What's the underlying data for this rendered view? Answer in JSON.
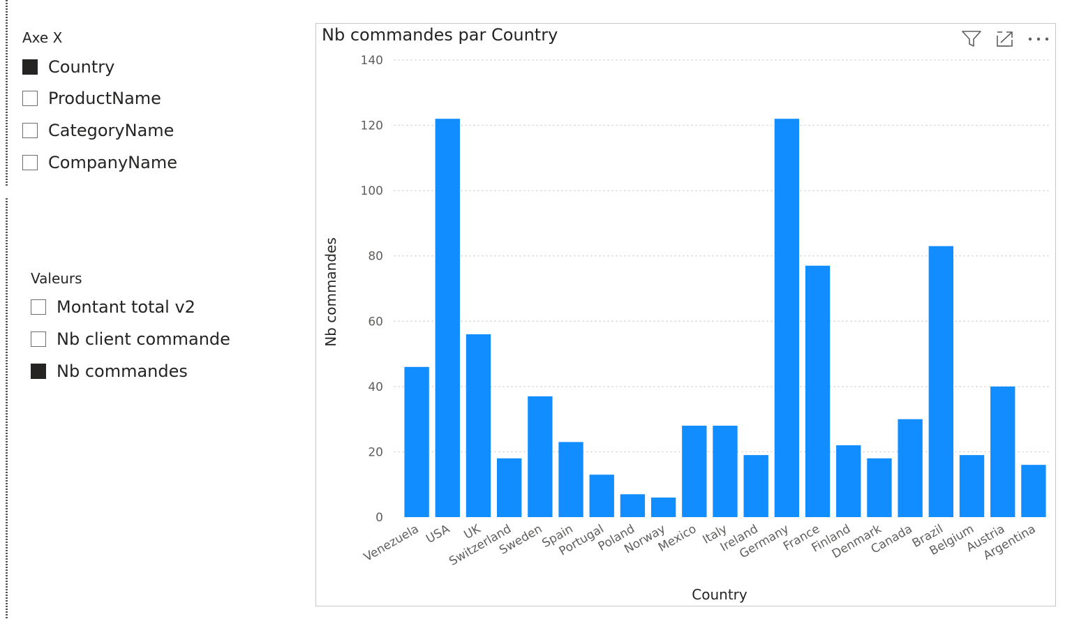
{
  "slicers": {
    "axis": {
      "title": "Axe X",
      "items": [
        {
          "label": "Country",
          "checked": true
        },
        {
          "label": "ProductName",
          "checked": false
        },
        {
          "label": "CategoryName",
          "checked": false
        },
        {
          "label": "CompanyName",
          "checked": false
        }
      ]
    },
    "values": {
      "title": "Valeurs",
      "items": [
        {
          "label": "Montant total v2",
          "checked": false
        },
        {
          "label": "Nb client commande",
          "checked": false
        },
        {
          "label": "Nb commandes",
          "checked": true
        }
      ]
    }
  },
  "toolbar": {
    "icons": [
      "filter-icon",
      "focus-mode-icon",
      "more-options-icon"
    ]
  },
  "colors": {
    "bar": "#118DFF",
    "text": "#252423",
    "tick": "#605E5C",
    "grid": "#C8C6C4"
  },
  "chart_data": {
    "type": "bar",
    "title": "Nb commandes par Country",
    "xlabel": "Country",
    "ylabel": "Nb commandes",
    "categories": [
      "Venezuela",
      "USA",
      "UK",
      "Switzerland",
      "Sweden",
      "Spain",
      "Portugal",
      "Poland",
      "Norway",
      "Mexico",
      "Italy",
      "Ireland",
      "Germany",
      "France",
      "Finland",
      "Denmark",
      "Canada",
      "Brazil",
      "Belgium",
      "Austria",
      "Argentina"
    ],
    "values": [
      46,
      122,
      56,
      18,
      37,
      23,
      13,
      7,
      6,
      28,
      28,
      19,
      122,
      77,
      22,
      18,
      30,
      83,
      19,
      40,
      16
    ],
    "ylim": [
      0,
      140
    ],
    "yticks": [
      0,
      20,
      40,
      60,
      80,
      100,
      120,
      140
    ],
    "grid": true
  }
}
